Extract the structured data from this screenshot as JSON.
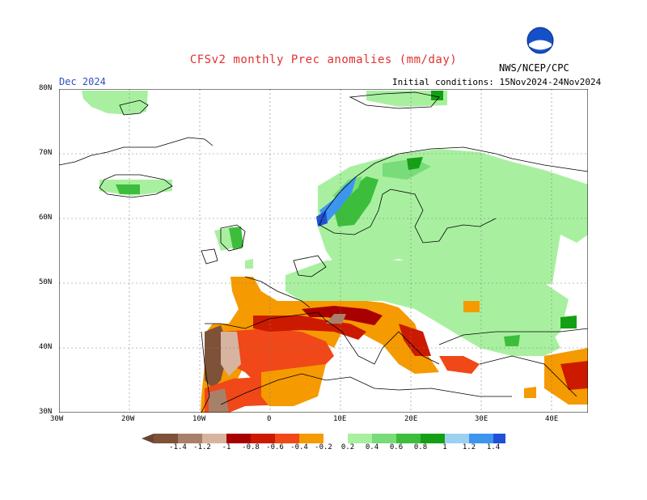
{
  "header": {
    "title": "CFSv2 monthly Prec anomalies (mm/day)",
    "month": "Dec 2024",
    "initial_conditions": "Initial conditions: 15Nov2024-24Nov2024",
    "agency": "NWS/NCEP/CPC",
    "logo_text": "NOAA"
  },
  "axes": {
    "lat_labels": [
      "80N",
      "70N",
      "60N",
      "50N",
      "40N",
      "30N"
    ],
    "lon_labels": [
      "30W",
      "20W",
      "10W",
      "0",
      "10E",
      "20E",
      "30E",
      "40E"
    ]
  },
  "colorbar": {
    "labels": [
      "-1.4",
      "-1.2",
      "-1",
      "-0.8",
      "-0.6",
      "-0.4",
      "-0.2",
      "0.2",
      "0.4",
      "0.6",
      "0.8",
      "1",
      "1.2",
      "1.4"
    ],
    "colors": [
      "#7d5238",
      "#a8806a",
      "#d7b4a0",
      "#a80000",
      "#cc1a00",
      "#f04818",
      "#f59a00",
      "#a8f0a0",
      "#78dc78",
      "#3cbe3c",
      "#14a014",
      "#9cd2f0",
      "#3c96f0",
      "#2050d8"
    ]
  }
}
